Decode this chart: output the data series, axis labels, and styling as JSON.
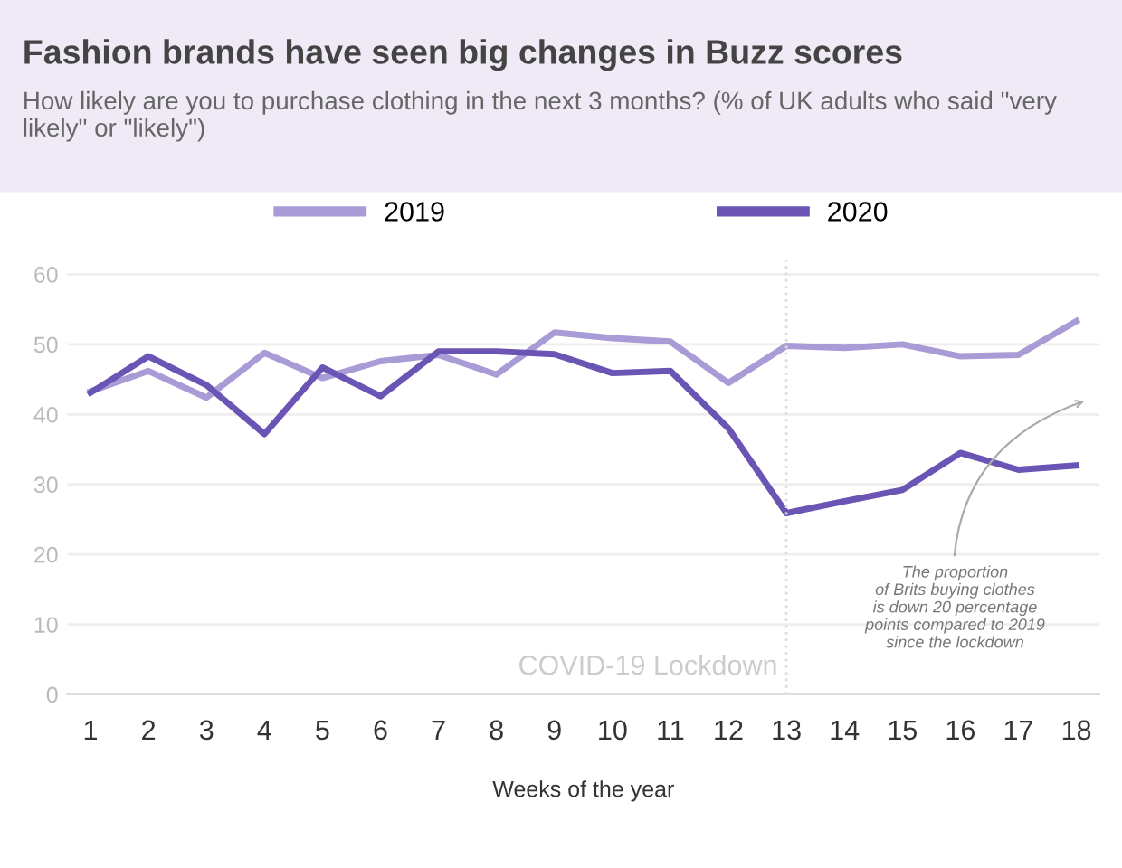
{
  "chart_data": {
    "type": "line",
    "title": "Fashion brands have seen big changes in Buzz scores",
    "subtitle": "How likely are you to purchase clothing in the next 3 months? (% of UK adults who said \"very likely\" or \"likely\")",
    "xlabel": "Weeks of the year",
    "x": [
      1,
      2,
      3,
      4,
      5,
      6,
      7,
      8,
      9,
      10,
      11,
      12,
      13,
      14,
      15,
      16,
      17,
      18
    ],
    "series": [
      {
        "name": "2019",
        "color": "#a99bd6",
        "values": [
          43.3,
          46.2,
          42.4,
          48.8,
          45.2,
          47.6,
          48.5,
          45.7,
          51.7,
          50.9,
          50.4,
          44.5,
          49.8,
          49.5,
          50,
          48.3,
          48.5,
          53.3
        ]
      },
      {
        "name": "2020",
        "color": "#6a55b5",
        "values": [
          43.1,
          48.3,
          44.2,
          37.2,
          46.7,
          42.6,
          49,
          49,
          48.6,
          45.9,
          46.2,
          38,
          25.9,
          27.6,
          29.2,
          34.5,
          32.1,
          32.7
        ]
      }
    ],
    "xlim": [
      0.6,
      18.4
    ],
    "xticks": [
      1,
      2,
      3,
      4,
      5,
      6,
      7,
      8,
      9,
      10,
      11,
      12,
      13,
      14,
      15,
      16,
      17,
      18
    ],
    "ylim": [
      0,
      62
    ],
    "yticks": [
      0,
      10,
      20,
      30,
      40,
      50,
      60
    ],
    "ref_lines": [
      {
        "axis": "x",
        "value": 13,
        "label": "COVID-19 Lockdown",
        "color": "#dddddd",
        "line_style": "dotted"
      }
    ],
    "annotations": [
      "The proportion\nof Brits buying clothes\nis down 20 percentage\npoints compared to 2019\nsince the lockdown"
    ],
    "grid": "y",
    "legend": "top",
    "marker": "none",
    "line_style": "solid"
  }
}
